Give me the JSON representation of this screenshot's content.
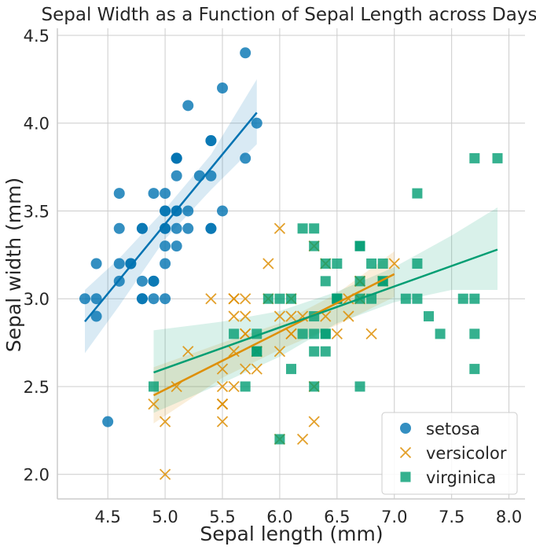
{
  "chart_data": {
    "type": "scatter",
    "title": "Sepal Width as a Function of Sepal Length across Days",
    "xlabel": "Sepal length (mm)",
    "ylabel": "Sepal width (mm)",
    "xlim": [
      4.06,
      8.14
    ],
    "ylim": [
      1.86,
      4.54
    ],
    "xticks": [
      "4.5",
      "5.0",
      "5.5",
      "6.0",
      "6.5",
      "7.0",
      "7.5",
      "8.0"
    ],
    "yticks": [
      "2.0",
      "2.5",
      "3.0",
      "3.5",
      "4.0",
      "4.5"
    ],
    "grid": true,
    "legend_position": "bottom-right",
    "series": [
      {
        "name": "setosa",
        "marker": "circle",
        "color": "#0173b2",
        "points": [
          [
            5.1,
            3.5
          ],
          [
            4.9,
            3.0
          ],
          [
            4.7,
            3.2
          ],
          [
            4.6,
            3.1
          ],
          [
            5.0,
            3.6
          ],
          [
            5.4,
            3.9
          ],
          [
            4.6,
            3.4
          ],
          [
            5.0,
            3.4
          ],
          [
            4.4,
            2.9
          ],
          [
            4.9,
            3.1
          ],
          [
            5.4,
            3.7
          ],
          [
            4.8,
            3.4
          ],
          [
            4.8,
            3.0
          ],
          [
            4.3,
            3.0
          ],
          [
            5.8,
            4.0
          ],
          [
            5.7,
            4.4
          ],
          [
            5.4,
            3.9
          ],
          [
            5.1,
            3.5
          ],
          [
            5.7,
            3.8
          ],
          [
            5.1,
            3.8
          ],
          [
            5.4,
            3.4
          ],
          [
            5.1,
            3.7
          ],
          [
            4.6,
            3.6
          ],
          [
            5.1,
            3.3
          ],
          [
            4.8,
            3.4
          ],
          [
            5.0,
            3.0
          ],
          [
            5.0,
            3.4
          ],
          [
            5.2,
            3.5
          ],
          [
            5.2,
            3.4
          ],
          [
            4.7,
            3.2
          ],
          [
            4.8,
            3.1
          ],
          [
            5.4,
            3.4
          ],
          [
            5.2,
            4.1
          ],
          [
            5.5,
            4.2
          ],
          [
            4.9,
            3.1
          ],
          [
            5.0,
            3.2
          ],
          [
            5.5,
            3.5
          ],
          [
            4.9,
            3.6
          ],
          [
            4.4,
            3.0
          ],
          [
            5.1,
            3.4
          ],
          [
            5.0,
            3.5
          ],
          [
            4.5,
            2.3
          ],
          [
            4.4,
            3.2
          ],
          [
            5.0,
            3.5
          ],
          [
            5.1,
            3.8
          ],
          [
            4.8,
            3.0
          ],
          [
            5.1,
            3.8
          ],
          [
            4.6,
            3.2
          ],
          [
            5.3,
            3.7
          ],
          [
            5.0,
            3.3
          ]
        ],
        "regression": {
          "x": [
            4.3,
            5.8
          ],
          "y": [
            2.87,
            4.06
          ]
        },
        "ci_band": {
          "x": [
            4.3,
            4.6,
            5.0,
            5.4,
            5.8
          ],
          "upper": [
            3.05,
            3.23,
            3.51,
            3.82,
            4.25
          ],
          "lower": [
            2.69,
            2.96,
            3.34,
            3.62,
            3.88
          ]
        }
      },
      {
        "name": "versicolor",
        "marker": "x",
        "color": "#de8f05",
        "points": [
          [
            7.0,
            3.2
          ],
          [
            6.4,
            3.2
          ],
          [
            6.9,
            3.1
          ],
          [
            5.5,
            2.3
          ],
          [
            6.5,
            2.8
          ],
          [
            5.7,
            2.8
          ],
          [
            6.3,
            3.3
          ],
          [
            4.9,
            2.4
          ],
          [
            6.6,
            2.9
          ],
          [
            5.2,
            2.7
          ],
          [
            5.0,
            2.0
          ],
          [
            5.9,
            3.0
          ],
          [
            6.0,
            2.2
          ],
          [
            6.1,
            2.9
          ],
          [
            5.6,
            2.9
          ],
          [
            6.7,
            3.1
          ],
          [
            5.6,
            3.0
          ],
          [
            5.8,
            2.7
          ],
          [
            6.2,
            2.2
          ],
          [
            5.6,
            2.5
          ],
          [
            5.9,
            3.2
          ],
          [
            6.1,
            2.8
          ],
          [
            6.3,
            2.5
          ],
          [
            6.1,
            2.8
          ],
          [
            6.4,
            2.9
          ],
          [
            6.6,
            3.0
          ],
          [
            6.8,
            2.8
          ],
          [
            6.7,
            3.0
          ],
          [
            6.0,
            2.9
          ],
          [
            5.7,
            2.6
          ],
          [
            5.5,
            2.4
          ],
          [
            5.5,
            2.4
          ],
          [
            5.8,
            2.7
          ],
          [
            6.0,
            2.7
          ],
          [
            5.4,
            3.0
          ],
          [
            6.0,
            3.4
          ],
          [
            6.7,
            3.1
          ],
          [
            6.3,
            2.3
          ],
          [
            5.6,
            3.0
          ],
          [
            5.5,
            2.5
          ],
          [
            5.5,
            2.6
          ],
          [
            6.1,
            3.0
          ],
          [
            5.8,
            2.6
          ],
          [
            5.0,
            2.3
          ],
          [
            5.6,
            2.7
          ],
          [
            5.7,
            3.0
          ],
          [
            5.7,
            2.9
          ],
          [
            6.2,
            2.9
          ],
          [
            5.1,
            2.5
          ],
          [
            5.7,
            2.8
          ]
        ],
        "regression": {
          "x": [
            4.9,
            7.0
          ],
          "y": [
            2.45,
            3.14
          ]
        },
        "ci_band": {
          "x": [
            4.9,
            5.5,
            6.0,
            6.5,
            7.0
          ],
          "upper": [
            2.61,
            2.75,
            2.86,
            3.03,
            3.27
          ],
          "lower": [
            2.29,
            2.55,
            2.71,
            2.85,
            3.01
          ]
        }
      },
      {
        "name": "virginica",
        "marker": "square",
        "color": "#029e73",
        "points": [
          [
            6.3,
            3.3
          ],
          [
            5.8,
            2.7
          ],
          [
            7.1,
            3.0
          ],
          [
            6.3,
            2.9
          ],
          [
            6.5,
            3.0
          ],
          [
            7.6,
            3.0
          ],
          [
            4.9,
            2.5
          ],
          [
            7.3,
            2.9
          ],
          [
            6.7,
            2.5
          ],
          [
            7.2,
            3.6
          ],
          [
            6.5,
            3.2
          ],
          [
            6.4,
            2.7
          ],
          [
            6.8,
            3.0
          ],
          [
            5.7,
            2.5
          ],
          [
            5.8,
            2.8
          ],
          [
            6.4,
            3.2
          ],
          [
            6.5,
            3.0
          ],
          [
            7.7,
            3.8
          ],
          [
            7.7,
            2.6
          ],
          [
            6.0,
            2.2
          ],
          [
            6.9,
            3.2
          ],
          [
            5.6,
            2.8
          ],
          [
            7.7,
            2.8
          ],
          [
            6.3,
            2.7
          ],
          [
            6.7,
            3.3
          ],
          [
            7.2,
            3.2
          ],
          [
            6.2,
            2.8
          ],
          [
            6.1,
            3.0
          ],
          [
            6.4,
            2.8
          ],
          [
            7.2,
            3.0
          ],
          [
            7.4,
            2.8
          ],
          [
            7.9,
            3.8
          ],
          [
            6.4,
            2.8
          ],
          [
            6.3,
            2.8
          ],
          [
            6.1,
            2.6
          ],
          [
            7.7,
            3.0
          ],
          [
            6.3,
            3.4
          ],
          [
            6.4,
            3.1
          ],
          [
            6.0,
            3.0
          ],
          [
            6.9,
            3.1
          ],
          [
            6.7,
            3.1
          ],
          [
            6.9,
            3.1
          ],
          [
            5.8,
            2.7
          ],
          [
            6.8,
            3.2
          ],
          [
            6.7,
            3.3
          ],
          [
            6.7,
            3.0
          ],
          [
            6.3,
            2.5
          ],
          [
            6.5,
            3.0
          ],
          [
            6.2,
            3.4
          ],
          [
            5.9,
            3.0
          ]
        ],
        "regression": {
          "x": [
            4.9,
            7.9
          ],
          "y": [
            2.58,
            3.28
          ]
        },
        "ci_band": {
          "x": [
            4.9,
            5.5,
            6.0,
            6.5,
            7.0,
            7.5,
            7.9
          ],
          "upper": [
            2.82,
            2.87,
            2.93,
            3.04,
            3.18,
            3.36,
            3.52
          ],
          "lower": [
            2.35,
            2.52,
            2.67,
            2.86,
            2.98,
            3.05,
            3.05
          ]
        }
      }
    ]
  }
}
